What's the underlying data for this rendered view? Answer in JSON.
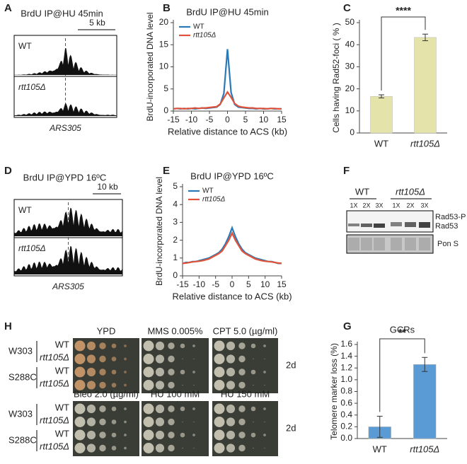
{
  "panel_labels": [
    "A",
    "B",
    "C",
    "D",
    "E",
    "F",
    "G",
    "H"
  ],
  "panel_a": {
    "title": "BrdU IP@HU 45min",
    "scale": "5 kb",
    "tracks": [
      "WT",
      "rtt105Δ"
    ],
    "locus": "ARS305"
  },
  "panel_c": {
    "title": "BrdU IP@YPD 16ºC",
    "scale": "10 kb",
    "tracks": [
      "WT",
      "rtt105Δ"
    ],
    "locus": "ARS305"
  },
  "panel_f": {
    "groups": [
      "WT",
      "rtt105Δ"
    ],
    "doses": [
      "1X",
      "2X",
      "3X",
      "1X",
      "2X",
      "3X"
    ],
    "bands": [
      "Rad53-P",
      "Rad53"
    ],
    "loading": "Pon S"
  },
  "panel_h": {
    "conditions": [
      "YPD",
      "MMS 0.005%",
      "CPT 5.0 (µg/ml)",
      "Bleo 2.0 (µg/ml)",
      "HU 100 mM",
      "HU 150 mM"
    ],
    "time": [
      "2d",
      "2d"
    ],
    "backgrounds": [
      "W303",
      "S288C",
      "W303",
      "S288C"
    ],
    "genotypes": [
      "WT",
      "rtt105Δ",
      "WT",
      "rtt105Δ",
      "WT",
      "rtt105Δ",
      "WT",
      "rtt105Δ"
    ]
  },
  "chart_data": [
    {
      "type": "line",
      "title": "BrdU IP@HU 45min",
      "xlabel": "Relative distance to ACS (kb)",
      "ylabel": "BrdU-incorporated DNA level",
      "x": [
        -15,
        -14,
        -13,
        -12,
        -11,
        -10,
        -9,
        -8,
        -7,
        -6,
        -5,
        -4,
        -3,
        -2,
        -1,
        0,
        1,
        2,
        3,
        4,
        5,
        6,
        7,
        8,
        9,
        10,
        11,
        12,
        13,
        14,
        15
      ],
      "series": [
        {
          "name": "WT",
          "color": "#2a7ab8",
          "values": [
            0.5,
            0.6,
            0.5,
            0.6,
            0.5,
            0.6,
            0.5,
            0.6,
            0.7,
            0.6,
            0.7,
            0.8,
            0.9,
            1.5,
            4.0,
            14.0,
            4.2,
            1.5,
            0.9,
            0.8,
            0.7,
            0.6,
            0.6,
            0.5,
            0.6,
            0.5,
            0.5,
            0.6,
            0.5,
            0.5,
            0.5
          ]
        },
        {
          "name": "rtt105Δ",
          "color": "#e0533a",
          "values": [
            0.5,
            0.6,
            0.6,
            0.5,
            0.6,
            0.6,
            0.7,
            0.6,
            0.7,
            0.7,
            0.8,
            0.9,
            1.0,
            1.6,
            3.0,
            4.3,
            3.1,
            1.7,
            1.1,
            0.9,
            0.8,
            0.7,
            0.7,
            0.6,
            0.6,
            0.6,
            0.5,
            0.6,
            0.6,
            0.5,
            0.5
          ]
        }
      ],
      "xlim": [
        -15,
        15
      ],
      "xticks": [
        -15,
        -10,
        -5,
        0,
        5,
        10,
        15
      ],
      "ylim": [
        0,
        20
      ],
      "yticks": [
        0,
        5,
        10,
        15,
        20
      ],
      "legend": "upper left"
    },
    {
      "type": "line",
      "title": "BrdU IP@YPD 16ºC",
      "xlabel": "Relative distance to ACS (kb)",
      "ylabel": "BrdU-incorporated DNA level",
      "x": [
        -15,
        -14,
        -13,
        -12,
        -11,
        -10,
        -9,
        -8,
        -7,
        -6,
        -5,
        -4,
        -3,
        -2,
        -1,
        0,
        1,
        2,
        3,
        4,
        5,
        6,
        7,
        8,
        9,
        10,
        11,
        12,
        13,
        14,
        15
      ],
      "series": [
        {
          "name": "WT",
          "color": "#2a7ab8",
          "values": [
            0.7,
            0.75,
            0.75,
            0.8,
            0.8,
            0.85,
            0.9,
            0.95,
            1.0,
            1.1,
            1.2,
            1.3,
            1.5,
            1.8,
            2.2,
            2.7,
            2.2,
            1.8,
            1.5,
            1.3,
            1.2,
            1.1,
            1.0,
            0.95,
            0.9,
            0.85,
            0.8,
            0.8,
            0.75,
            0.7,
            0.7
          ]
        },
        {
          "name": "rtt105Δ",
          "color": "#e0533a",
          "values": [
            0.7,
            0.72,
            0.75,
            0.78,
            0.8,
            0.82,
            0.85,
            0.9,
            0.95,
            1.05,
            1.15,
            1.25,
            1.4,
            1.7,
            2.0,
            2.4,
            2.0,
            1.7,
            1.4,
            1.25,
            1.15,
            1.05,
            0.95,
            0.9,
            0.85,
            0.82,
            0.8,
            0.78,
            0.75,
            0.72,
            0.7
          ]
        }
      ],
      "xlim": [
        -15,
        15
      ],
      "xticks": [
        -15,
        -10,
        -5,
        0,
        5,
        10,
        15
      ],
      "ylim": [
        0,
        5
      ],
      "yticks": [
        0,
        1,
        2,
        3,
        4,
        5
      ],
      "legend": "upper left"
    },
    {
      "type": "bar",
      "ylabel": "Cells having Rad52-foci ( % )",
      "categories": [
        "WT",
        "rtt105Δ"
      ],
      "values": [
        16.6,
        43.3
      ],
      "errors": [
        0.7,
        1.5
      ],
      "color": "#e4e3a9",
      "annotation": "****",
      "ylim": [
        0,
        50
      ],
      "yticks": [
        0,
        10,
        20,
        30,
        40,
        50
      ]
    },
    {
      "type": "bar",
      "title": "GCRs",
      "ylabel": "Telomere marker loss (%)",
      "categories": [
        "WT",
        "rtt105Δ"
      ],
      "values": [
        0.2,
        1.26
      ],
      "errors": [
        0.18,
        0.12
      ],
      "color": "#5b9bd5",
      "annotation": "**",
      "ylim": [
        0,
        1.6
      ],
      "yticks": [
        {
          "value": 0,
          "label": "0.0"
        },
        {
          "value": 0.2,
          "label": "0.2"
        },
        {
          "value": 0.4,
          "label": "0.4"
        },
        {
          "value": 0.6,
          "label": "0.6"
        },
        {
          "value": 0.8,
          "label": "0.8"
        },
        {
          "value": 1,
          "label": "1.0"
        },
        {
          "value": 1.2,
          "label": "1.2"
        },
        {
          "value": 1.4,
          "label": "1.4"
        },
        {
          "value": 1.6,
          "label": "1.6"
        }
      ]
    }
  ]
}
